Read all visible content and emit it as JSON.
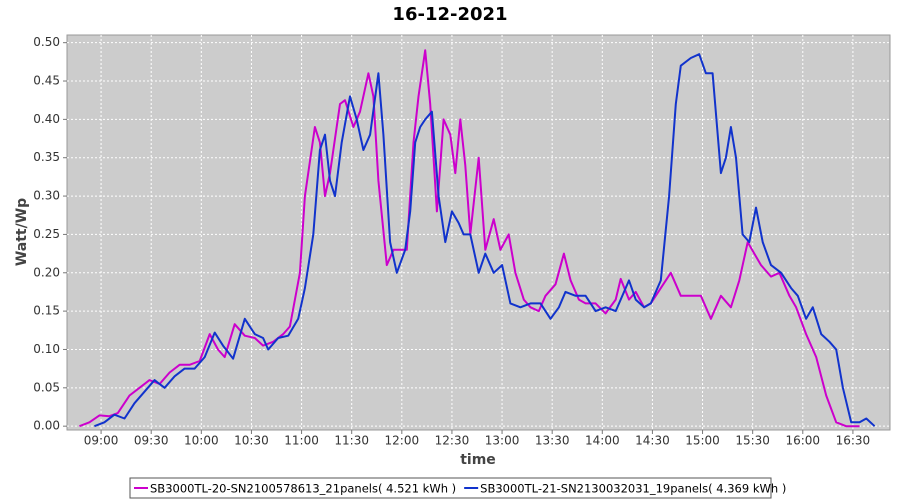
{
  "chart_data": {
    "type": "line",
    "title": "16-12-2021",
    "x_label": "time",
    "y_label": "Watt/Wp",
    "xlim": [
      519.6,
      1012.2
    ],
    "ylim": [
      -0.005,
      0.51
    ],
    "grid": true,
    "legend": "bottom",
    "xticks": [
      {
        "value": 540,
        "label": "09:00"
      },
      {
        "value": 570,
        "label": "09:30"
      },
      {
        "value": 600,
        "label": "10:00"
      },
      {
        "value": 630,
        "label": "10:30"
      },
      {
        "value": 660,
        "label": "11:00"
      },
      {
        "value": 690,
        "label": "11:30"
      },
      {
        "value": 720,
        "label": "12:00"
      },
      {
        "value": 750,
        "label": "12:30"
      },
      {
        "value": 780,
        "label": "13:00"
      },
      {
        "value": 810,
        "label": "13:30"
      },
      {
        "value": 840,
        "label": "14:00"
      },
      {
        "value": 870,
        "label": "14:30"
      },
      {
        "value": 900,
        "label": "15:00"
      },
      {
        "value": 930,
        "label": "15:30"
      },
      {
        "value": 960,
        "label": "16:00"
      },
      {
        "value": 990,
        "label": "16:30"
      }
    ],
    "yticks": [
      {
        "value": 0,
        "label": "0.00"
      },
      {
        "value": 0.05,
        "label": "0.05"
      },
      {
        "value": 0.1,
        "label": "0.10"
      },
      {
        "value": 0.15,
        "label": "0.15"
      },
      {
        "value": 0.2,
        "label": "0.20"
      },
      {
        "value": 0.25,
        "label": "0.25"
      },
      {
        "value": 0.3,
        "label": "0.30"
      },
      {
        "value": 0.35,
        "label": "0.35"
      },
      {
        "value": 0.4,
        "label": "0.40"
      },
      {
        "value": 0.45,
        "label": "0.45"
      },
      {
        "value": 0.5,
        "label": "0.50"
      }
    ],
    "series": [
      {
        "name": "SB3000TL-20-SN2100578613_21panels( 4.521 kWh )",
        "color": "#cc00cc",
        "x": [
          527,
          533,
          539,
          545,
          550,
          557,
          563,
          569,
          575,
          581,
          587,
          593,
          599,
          605,
          610,
          614,
          620,
          626,
          632,
          637,
          643,
          649,
          653,
          659,
          662,
          668,
          671,
          674,
          677,
          683,
          686,
          691,
          695,
          700,
          703,
          706,
          711,
          715,
          719,
          723,
          727,
          730,
          734,
          737,
          741,
          745,
          749,
          752,
          755,
          758,
          761,
          766,
          770,
          775,
          779,
          784,
          788,
          793,
          797,
          802,
          806,
          812,
          817,
          821,
          826,
          830,
          836,
          842,
          848,
          851,
          856,
          860,
          865,
          869,
          875,
          881,
          887,
          893,
          899,
          905,
          911,
          917,
          922,
          927,
          931,
          935,
          941,
          946,
          952,
          956,
          962,
          968,
          974,
          980,
          986,
          994
        ],
        "values": [
          0.0,
          0.005,
          0.014,
          0.013,
          0.017,
          0.04,
          0.05,
          0.06,
          0.055,
          0.07,
          0.08,
          0.08,
          0.085,
          0.12,
          0.1,
          0.09,
          0.133,
          0.118,
          0.115,
          0.105,
          0.11,
          0.12,
          0.13,
          0.2,
          0.3,
          0.39,
          0.37,
          0.3,
          0.33,
          0.42,
          0.425,
          0.39,
          0.41,
          0.46,
          0.43,
          0.32,
          0.21,
          0.23,
          0.23,
          0.23,
          0.37,
          0.43,
          0.49,
          0.42,
          0.28,
          0.4,
          0.38,
          0.33,
          0.4,
          0.34,
          0.25,
          0.35,
          0.23,
          0.27,
          0.23,
          0.25,
          0.2,
          0.165,
          0.155,
          0.15,
          0.17,
          0.185,
          0.225,
          0.19,
          0.165,
          0.16,
          0.16,
          0.147,
          0.165,
          0.192,
          0.165,
          0.175,
          0.155,
          0.16,
          0.18,
          0.2,
          0.17,
          0.17,
          0.17,
          0.14,
          0.17,
          0.155,
          0.19,
          0.24,
          0.225,
          0.21,
          0.195,
          0.2,
          0.17,
          0.155,
          0.12,
          0.09,
          0.04,
          0.005,
          0.0,
          0.0
        ]
      },
      {
        "name": "SB3000TL-21-SN2130032031_19panels( 4.369 kWh )",
        "color": "#1133cc",
        "x": [
          536,
          542,
          548,
          554,
          560,
          566,
          572,
          578,
          584,
          590,
          596,
          602,
          608,
          613,
          619,
          626,
          632,
          637,
          640,
          646,
          652,
          658,
          662,
          667,
          671,
          674,
          677,
          680,
          684,
          689,
          693,
          697,
          701,
          706,
          709,
          713,
          717,
          722,
          725,
          728,
          731,
          734,
          738,
          742,
          746,
          750,
          754,
          757,
          761,
          766,
          770,
          775,
          780,
          785,
          791,
          797,
          803,
          809,
          814,
          818,
          824,
          830,
          836,
          842,
          848,
          856,
          860,
          865,
          869,
          875,
          880,
          884,
          887,
          893,
          898,
          902,
          906,
          911,
          914,
          917,
          920,
          924,
          928,
          932,
          936,
          941,
          947,
          953,
          957,
          962,
          966,
          971,
          976,
          980,
          984,
          989,
          994,
          998,
          1003
        ],
        "values": [
          0.0,
          0.005,
          0.015,
          0.01,
          0.03,
          0.045,
          0.06,
          0.05,
          0.065,
          0.075,
          0.075,
          0.09,
          0.122,
          0.105,
          0.088,
          0.14,
          0.12,
          0.115,
          0.1,
          0.115,
          0.118,
          0.14,
          0.18,
          0.25,
          0.36,
          0.38,
          0.32,
          0.3,
          0.37,
          0.43,
          0.4,
          0.36,
          0.38,
          0.46,
          0.38,
          0.24,
          0.2,
          0.23,
          0.28,
          0.37,
          0.39,
          0.4,
          0.41,
          0.3,
          0.24,
          0.28,
          0.265,
          0.25,
          0.25,
          0.2,
          0.225,
          0.2,
          0.21,
          0.16,
          0.155,
          0.16,
          0.16,
          0.14,
          0.155,
          0.175,
          0.17,
          0.17,
          0.15,
          0.155,
          0.15,
          0.19,
          0.165,
          0.155,
          0.16,
          0.19,
          0.3,
          0.42,
          0.47,
          0.48,
          0.485,
          0.46,
          0.46,
          0.33,
          0.35,
          0.39,
          0.35,
          0.25,
          0.24,
          0.285,
          0.24,
          0.21,
          0.2,
          0.18,
          0.17,
          0.14,
          0.155,
          0.12,
          0.11,
          0.1,
          0.05,
          0.005,
          0.005,
          0.01,
          0.0
        ]
      }
    ]
  }
}
